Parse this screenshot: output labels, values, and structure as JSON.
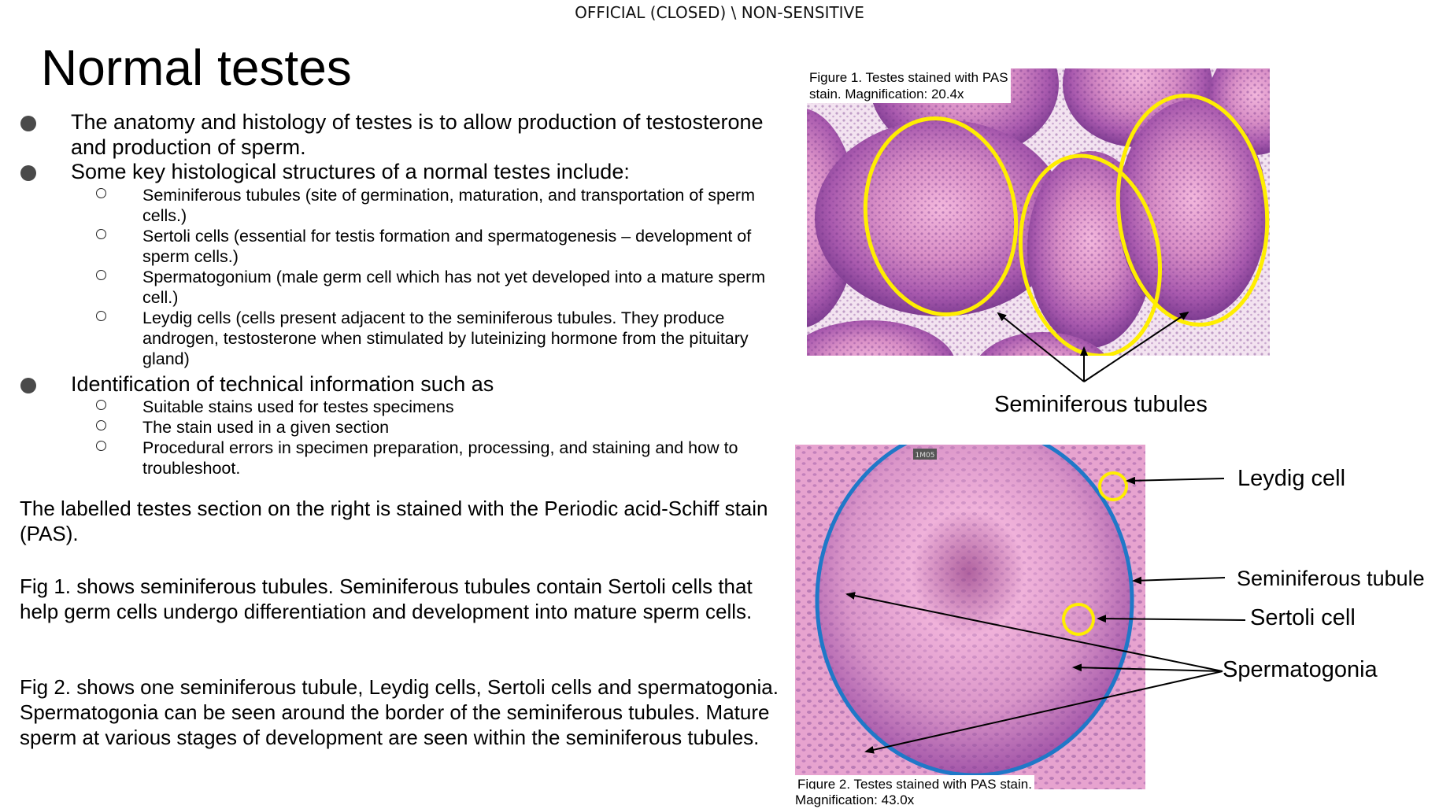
{
  "header": {
    "classification": "OFFICIAL (CLOSED) \\ NON-SENSITIVE"
  },
  "slide": {
    "title": "Normal testes"
  },
  "bullets": [
    {
      "text": "The anatomy and histology of testes is to allow production of testosterone and production of sperm.",
      "sub": []
    },
    {
      "text": "Some key histological structures of a normal testes include:",
      "sub": [
        "Seminiferous tubules (site of germination, maturation, and transportation of sperm cells.)",
        "Sertoli cells (essential for testis formation and spermatogenesis – development of sperm cells.)",
        "Spermatogonium (male germ cell which has not yet developed into a mature sperm cell.)",
        "Leydig cells (cells present adjacent to the seminiferous tubules. They produce androgen, testosterone when stimulated by luteinizing hormone from the pituitary gland)"
      ]
    },
    {
      "text": "Identification of technical information such as",
      "sub": [
        "Suitable stains used for testes specimens",
        "The stain used in a given section",
        "Procedural errors in specimen preparation, processing, and staining and how to troubleshoot."
      ]
    }
  ],
  "paragraphs": {
    "p1": "The labelled testes section on the right is stained with the Periodic acid-Schiff stain (PAS).",
    "p2": "Fig 1. shows seminiferous tubules. Seminiferous tubules contain Sertoli cells that help germ cells undergo differentiation and development into mature sperm cells.",
    "p3": "Fig 2. shows one seminiferous tubule, Leydig cells, Sertoli cells and spermatogonia. Spermatogonia can be seen around the border of the seminiferous tubules. Mature sperm at various stages of development are seen within the seminiferous tubules."
  },
  "figure1": {
    "caption_line1": "Figure 1. Testes stained with PAS",
    "caption_line2": "stain. Magnification: 20.4x",
    "label": "Seminiferous tubules"
  },
  "figure2": {
    "caption_line1": "Figure 2. Testes stained with PAS stain.",
    "caption_line2": "Magnification: 43.0x",
    "scale_marker": "1M05",
    "labels": {
      "leydig": "Leydig cell",
      "tubule": "Seminiferous tubule",
      "sertoli": "Sertoli cell",
      "spermatogonia": "Spermatogonia"
    }
  },
  "colors": {
    "tissue_pink": "#e9a9d0",
    "tissue_purple": "#9a4fa3",
    "annotation_yellow": "#ffee00",
    "annotation_blue": "#1f78c8",
    "background": "#ffffff"
  }
}
